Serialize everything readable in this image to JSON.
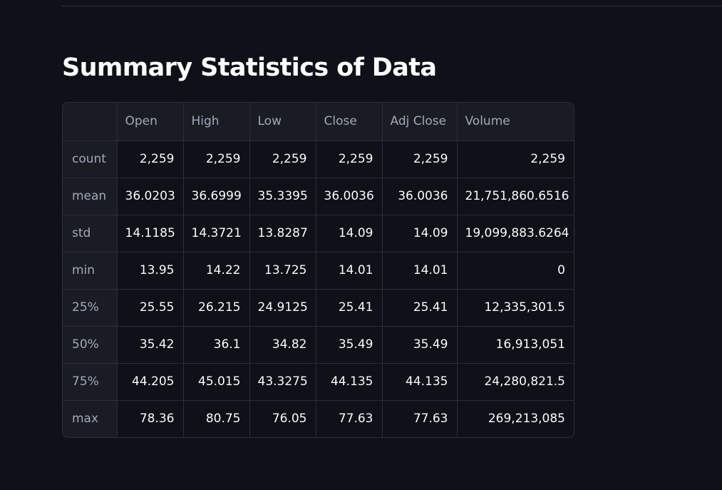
{
  "page": {
    "title": "Summary Statistics of Data"
  },
  "table": {
    "columns": [
      "Open",
      "High",
      "Low",
      "Close",
      "Adj Close",
      "Volume"
    ],
    "rows": [
      {
        "label": "count",
        "values": [
          "2,259",
          "2,259",
          "2,259",
          "2,259",
          "2,259",
          "2,259"
        ]
      },
      {
        "label": "mean",
        "values": [
          "36.0203",
          "36.6999",
          "35.3395",
          "36.0036",
          "36.0036",
          "21,751,860.6516"
        ]
      },
      {
        "label": "std",
        "values": [
          "14.1185",
          "14.3721",
          "13.8287",
          "14.09",
          "14.09",
          "19,099,883.6264"
        ]
      },
      {
        "label": "min",
        "values": [
          "13.95",
          "14.22",
          "13.725",
          "14.01",
          "14.01",
          "0"
        ]
      },
      {
        "label": "25%",
        "values": [
          "25.55",
          "26.215",
          "24.9125",
          "25.41",
          "25.41",
          "12,335,301.5"
        ]
      },
      {
        "label": "50%",
        "values": [
          "35.42",
          "36.1",
          "34.82",
          "35.49",
          "35.49",
          "16,913,051"
        ]
      },
      {
        "label": "75%",
        "values": [
          "44.205",
          "45.015",
          "43.3275",
          "44.135",
          "44.135",
          "24,280,821.5"
        ]
      },
      {
        "label": "max",
        "values": [
          "78.36",
          "80.75",
          "76.05",
          "77.63",
          "77.63",
          "269,213,085"
        ]
      }
    ]
  },
  "colors": {
    "background": "#0e1117",
    "header_background": "#1a1c24",
    "border": "#2b2e36",
    "text": "#fafafa",
    "muted_text": "#a3a8b8"
  }
}
